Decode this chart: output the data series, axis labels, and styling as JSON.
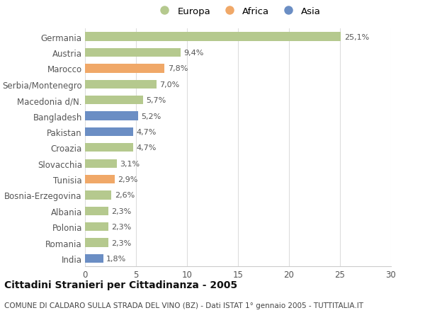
{
  "categories": [
    "Germania",
    "Austria",
    "Marocco",
    "Serbia/Montenegro",
    "Macedonia d/N.",
    "Bangladesh",
    "Pakistan",
    "Croazia",
    "Slovacchia",
    "Tunisia",
    "Bosnia-Erzegovina",
    "Albania",
    "Polonia",
    "Romania",
    "India"
  ],
  "values": [
    25.1,
    9.4,
    7.8,
    7.0,
    5.7,
    5.2,
    4.7,
    4.7,
    3.1,
    2.9,
    2.6,
    2.3,
    2.3,
    2.3,
    1.8
  ],
  "labels": [
    "25,1%",
    "9,4%",
    "7,8%",
    "7,0%",
    "5,7%",
    "5,2%",
    "4,7%",
    "4,7%",
    "3,1%",
    "2,9%",
    "2,6%",
    "2,3%",
    "2,3%",
    "2,3%",
    "1,8%"
  ],
  "continents": [
    "Europa",
    "Europa",
    "Africa",
    "Europa",
    "Europa",
    "Asia",
    "Asia",
    "Europa",
    "Europa",
    "Africa",
    "Europa",
    "Europa",
    "Europa",
    "Europa",
    "Asia"
  ],
  "colors": {
    "Europa": "#b5c98e",
    "Africa": "#f0a868",
    "Asia": "#6b8ec4"
  },
  "legend_labels": [
    "Europa",
    "Africa",
    "Asia"
  ],
  "xlim": [
    0,
    30
  ],
  "xticks": [
    0,
    5,
    10,
    15,
    20,
    25,
    30
  ],
  "title": "Cittadini Stranieri per Cittadinanza - 2005",
  "subtitle": "COMUNE DI CALDARO SULLA STRADA DEL VINO (BZ) - Dati ISTAT 1° gennaio 2005 - TUTTITALIA.IT",
  "background_color": "#ffffff",
  "grid_color": "#dddddd",
  "bar_height": 0.55,
  "label_fontsize": 8,
  "ytick_fontsize": 8.5,
  "xtick_fontsize": 8.5,
  "title_fontsize": 10,
  "subtitle_fontsize": 7.5,
  "legend_fontsize": 9.5
}
